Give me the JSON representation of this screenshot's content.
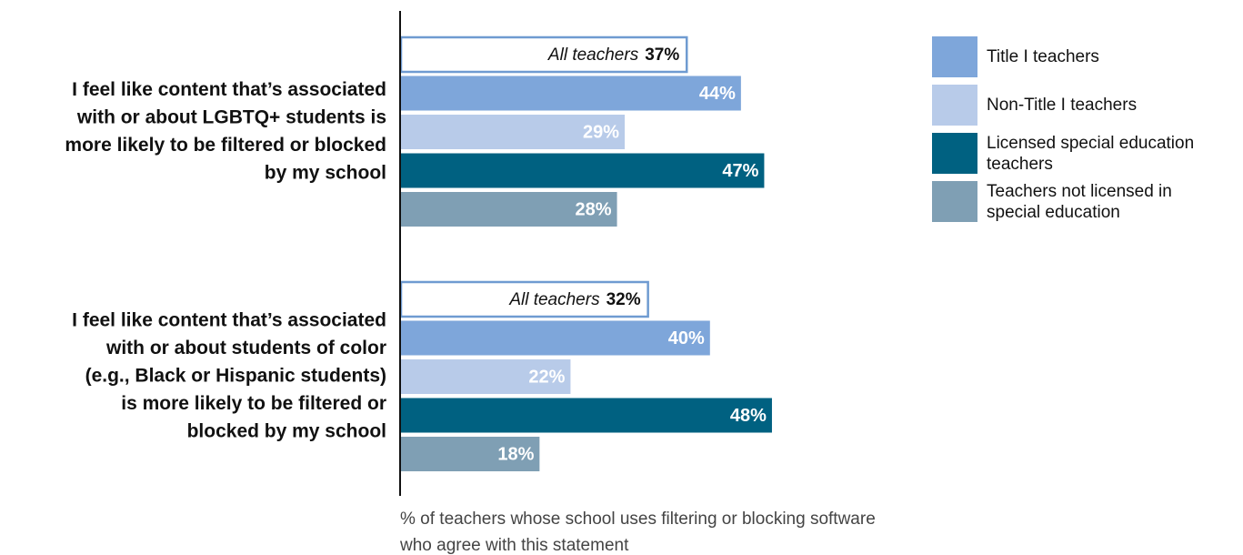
{
  "chart_data": {
    "type": "hbar",
    "categories": [
      [
        "I feel like content that’s associated",
        "with or about LGBTQ+ students is",
        "more likely to be filtered or blocked",
        "by my school"
      ],
      [
        "I feel like content that’s associated",
        "with or about students of color",
        "(e.g., Black or Hispanic students)",
        "is more likely to be filtered or",
        "blocked by my school"
      ]
    ],
    "series": [
      {
        "name": "All teachers",
        "color": "#ffffff",
        "stroke": "#6f9bd1",
        "in_legend": false,
        "values": [
          37,
          32
        ],
        "value_labels": [
          "37%",
          "32%"
        ]
      },
      {
        "name": "Title I teachers",
        "color": "#7ea6da",
        "values": [
          44,
          40
        ],
        "value_labels": [
          "44%",
          "40%"
        ]
      },
      {
        "name": "Non-Title I teachers",
        "color": "#b8cbe9",
        "values": [
          29,
          22
        ],
        "value_labels": [
          "29%",
          "22%"
        ]
      },
      {
        "name": "Licensed special education teachers",
        "color": "#006181",
        "values": [
          47,
          48
        ],
        "value_labels": [
          "47%",
          "48%"
        ]
      },
      {
        "name": "Teachers not licensed in special education",
        "color": "#7f9fb4",
        "values": [
          28,
          18
        ],
        "value_labels": [
          "28%",
          "18%"
        ]
      }
    ],
    "xlim": [
      0,
      100
    ],
    "x_label": [
      "% of teachers whose school uses filtering or blocking software",
      "who agree with this statement"
    ],
    "legend": "upper right"
  }
}
